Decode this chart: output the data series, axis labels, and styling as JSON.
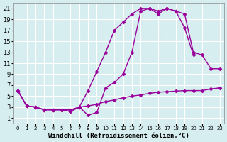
{
  "background_color": "#d6eef0",
  "grid_color": "#ffffff",
  "line_color": "#990099",
  "marker": "D",
  "markersize": 2.5,
  "linewidth": 1.0,
  "xlabel": "Windchill (Refroidissement éolien,°C)",
  "xlabel_fontsize": 6.5,
  "xtick_fontsize": 5.0,
  "ytick_fontsize": 6.0,
  "xlim": [
    -0.5,
    23.5
  ],
  "ylim": [
    0,
    22
  ],
  "xticks": [
    0,
    1,
    2,
    3,
    4,
    5,
    6,
    7,
    8,
    9,
    10,
    11,
    12,
    13,
    14,
    15,
    16,
    17,
    18,
    19,
    20,
    21,
    22,
    23
  ],
  "yticks": [
    1,
    3,
    5,
    7,
    9,
    11,
    13,
    15,
    17,
    19,
    21
  ],
  "line1_x": [
    0,
    1,
    2,
    3,
    4,
    5,
    6,
    7,
    8,
    9,
    10,
    11,
    12,
    13,
    14,
    15,
    16,
    17,
    18,
    19,
    20,
    21,
    22,
    23
  ],
  "line1_y": [
    6.0,
    3.2,
    3.0,
    2.5,
    2.5,
    2.5,
    2.2,
    3.0,
    3.2,
    3.5,
    4.0,
    4.3,
    4.7,
    5.0,
    5.2,
    5.5,
    5.7,
    5.8,
    5.9,
    6.0,
    6.0,
    6.0,
    6.3,
    6.5
  ],
  "line2_x": [
    0,
    1,
    2,
    3,
    4,
    5,
    6,
    7,
    8,
    9,
    10,
    11,
    12,
    13,
    14,
    15,
    16,
    17,
    18,
    19,
    20,
    21,
    22,
    23
  ],
  "line2_y": [
    6.0,
    3.2,
    3.0,
    2.5,
    2.5,
    2.5,
    2.5,
    3.0,
    6.0,
    9.5,
    13.0,
    17.0,
    18.5,
    20.0,
    21.0,
    21.0,
    20.5,
    21.0,
    20.5,
    20.0,
    13.0,
    12.5,
    10.0,
    10.0
  ],
  "line3_x": [
    0,
    1,
    2,
    3,
    4,
    5,
    6,
    7,
    8,
    9,
    10,
    11,
    12,
    13,
    14,
    15,
    16,
    17,
    18,
    19,
    20,
    21,
    22,
    23
  ],
  "line3_y": [
    6.0,
    3.2,
    3.0,
    2.5,
    2.5,
    2.5,
    2.2,
    3.0,
    1.5,
    2.0,
    6.5,
    7.5,
    9.0,
    13.0,
    20.5,
    21.0,
    20.0,
    21.0,
    20.5,
    17.5,
    12.5,
    null,
    null,
    null
  ]
}
